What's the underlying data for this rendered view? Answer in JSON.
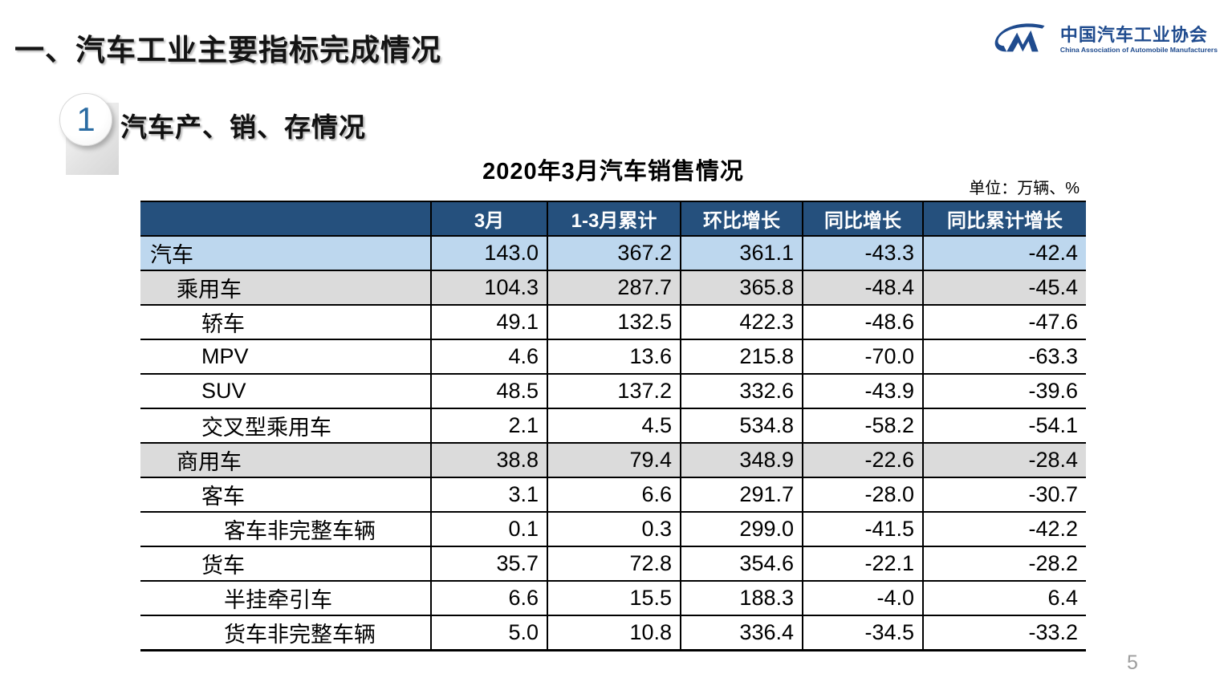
{
  "page": {
    "title": "一、汽车工业主要指标完成情况",
    "page_number": "5"
  },
  "logo": {
    "monogram": "CM",
    "cn": "中国汽车工业协会",
    "en": "China Association of Automobile Manufacturers"
  },
  "section": {
    "badge": "1",
    "title": "汽车产、销、存情况"
  },
  "table": {
    "title": "2020年3月汽车销售情况",
    "unit_label": "单位：万辆、%",
    "columns": [
      "",
      "3月",
      "1-3月累计",
      "环比增长",
      "同比增长",
      "同比累计增长"
    ],
    "rows": [
      {
        "label": "汽车",
        "level": 0,
        "highlight": "blue",
        "values": [
          "143.0",
          "367.2",
          "361.1",
          "-43.3",
          "-42.4"
        ]
      },
      {
        "label": "乘用车",
        "level": 1,
        "highlight": "gray",
        "values": [
          "104.3",
          "287.7",
          "365.8",
          "-48.4",
          "-45.4"
        ]
      },
      {
        "label": "轿车",
        "level": 2,
        "highlight": "none",
        "values": [
          "49.1",
          "132.5",
          "422.3",
          "-48.6",
          "-47.6"
        ]
      },
      {
        "label": "MPV",
        "level": 2,
        "highlight": "none",
        "values": [
          "4.6",
          "13.6",
          "215.8",
          "-70.0",
          "-63.3"
        ]
      },
      {
        "label": "SUV",
        "level": 2,
        "highlight": "none",
        "values": [
          "48.5",
          "137.2",
          "332.6",
          "-43.9",
          "-39.6"
        ]
      },
      {
        "label": "交叉型乘用车",
        "level": 2,
        "highlight": "none",
        "values": [
          "2.1",
          "4.5",
          "534.8",
          "-58.2",
          "-54.1"
        ]
      },
      {
        "label": "商用车",
        "level": 1,
        "highlight": "gray",
        "values": [
          "38.8",
          "79.4",
          "348.9",
          "-22.6",
          "-28.4"
        ]
      },
      {
        "label": "客车",
        "level": 2,
        "highlight": "none",
        "values": [
          "3.1",
          "6.6",
          "291.7",
          "-28.0",
          "-30.7"
        ]
      },
      {
        "label": "客车非完整车辆",
        "level": 3,
        "highlight": "none",
        "values": [
          "0.1",
          "0.3",
          "299.0",
          "-41.5",
          "-42.2"
        ]
      },
      {
        "label": "货车",
        "level": 2,
        "highlight": "none",
        "values": [
          "35.7",
          "72.8",
          "354.6",
          "-22.1",
          "-28.2"
        ]
      },
      {
        "label": "半挂牵引车",
        "level": 3,
        "highlight": "none",
        "values": [
          "6.6",
          "15.5",
          "188.3",
          "-4.0",
          "6.4"
        ]
      },
      {
        "label": "货车非完整车辆",
        "level": 3,
        "highlight": "none",
        "values": [
          "5.0",
          "10.8",
          "336.4",
          "-34.5",
          "-33.2"
        ]
      }
    ]
  },
  "colors": {
    "header_bg": "#25507D",
    "row_blue": "#BDD7EE",
    "row_gray": "#DBDBDB",
    "logo_blue": "#1F4B8E",
    "badge_number": "#2B6CA3",
    "page_number_gray": "#9E9E9E"
  }
}
